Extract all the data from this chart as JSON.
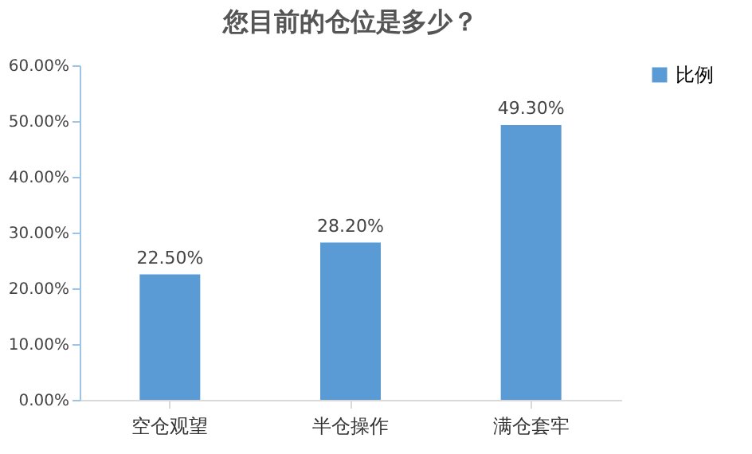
{
  "chart_data": {
    "type": "bar",
    "title": "您目前的仓位是多少？",
    "categories": [
      "空仓观望",
      "半仓操作",
      "满仓套牢"
    ],
    "series": [
      {
        "name": "比例",
        "color": "#5b9bd5",
        "values": [
          22.5,
          28.2,
          49.3
        ]
      }
    ],
    "value_labels": [
      "22.50%",
      "28.20%",
      "49.30%"
    ],
    "ylim": [
      0,
      60
    ],
    "yticks": [
      {
        "value": 0,
        "label": "0.00%"
      },
      {
        "value": 10,
        "label": "10.00%"
      },
      {
        "value": 20,
        "label": "20.00%"
      },
      {
        "value": 30,
        "label": "30.00%"
      },
      {
        "value": 40,
        "label": "40.00%"
      },
      {
        "value": 50,
        "label": "50.00%"
      },
      {
        "value": 60,
        "label": "60.00%"
      }
    ],
    "grid": false,
    "legend": "right"
  }
}
